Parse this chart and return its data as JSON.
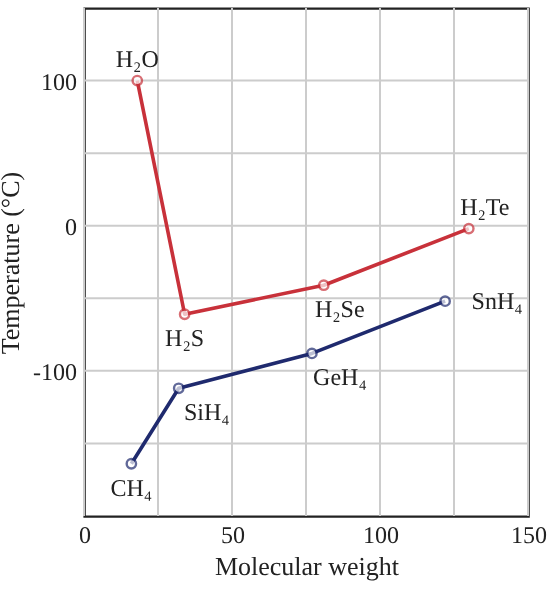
{
  "chart_data": {
    "type": "line",
    "xlabel": "Molecular weight",
    "ylabel": "Temperature (°C)",
    "series": [
      {
        "color": "#c8313a",
        "x": [
          18,
          34,
          81,
          130
        ],
        "values": [
          100,
          -61,
          -41,
          -2
        ]
      },
      {
        "color": "#1f2a6e",
        "x": [
          16,
          32,
          77,
          122
        ],
        "values": [
          -164,
          -112,
          -88,
          -52
        ]
      }
    ],
    "xlim": [
      0,
      150
    ],
    "xticks": [
      0,
      {
        "value": 25,
        "label": null
      },
      50,
      {
        "value": 75,
        "label": null
      },
      100,
      {
        "value": 125,
        "label": null
      },
      150
    ],
    "ylim": [
      -200,
      150
    ],
    "yticks": [
      {
        "value": -150,
        "label": null
      },
      -100,
      {
        "value": -50,
        "label": null
      },
      0,
      {
        "value": 50,
        "label": null
      },
      100
    ],
    "grid": true,
    "marker": "circle",
    "line_style": "solid",
    "annotations": [
      {
        "text": "H₂O",
        "x": 18,
        "y": 100
      },
      {
        "text": "H₂S",
        "x": 34,
        "y": -61
      },
      {
        "text": "H₂Se",
        "x": 81,
        "y": -41
      },
      {
        "text": "H₂Te",
        "x": 130,
        "y": -2
      },
      {
        "text": "CH₄",
        "x": 16,
        "y": -164
      },
      {
        "text": "SiH₄",
        "x": 32,
        "y": -112
      },
      {
        "text": "GeH₄",
        "x": 77,
        "y": -88
      },
      {
        "text": "SnH₄",
        "x": 122,
        "y": -52
      }
    ]
  }
}
